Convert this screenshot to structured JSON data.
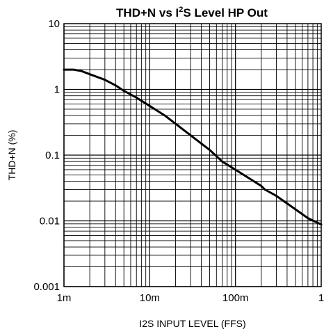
{
  "chart_data": {
    "type": "line",
    "title": {
      "prefix": "THD+N vs I",
      "sup": "2",
      "suffix": "S Level HP Out"
    },
    "xlabel": "I2S INPUT LEVEL (FFS)",
    "ylabel": "THD+N (%)",
    "x_scale": "log",
    "y_scale": "log",
    "xlim": [
      0.001,
      1
    ],
    "ylim": [
      0.001,
      10
    ],
    "grid": true,
    "x_ticks": [
      {
        "value": 0.001,
        "label": "1m"
      },
      {
        "value": 0.01,
        "label": "10m"
      },
      {
        "value": 0.1,
        "label": "100m"
      },
      {
        "value": 1,
        "label": "1"
      }
    ],
    "y_ticks": [
      {
        "value": 10,
        "label": "10"
      },
      {
        "value": 1,
        "label": "1"
      },
      {
        "value": 0.1,
        "label": "0.1"
      },
      {
        "value": 0.01,
        "label": "0.01"
      },
      {
        "value": 0.001,
        "label": "0.001"
      }
    ],
    "series": [
      {
        "color": "#000000",
        "x": [
          0.001,
          0.0013,
          0.0016,
          0.002,
          0.003,
          0.004,
          0.005,
          0.007,
          0.01,
          0.015,
          0.02,
          0.03,
          0.05,
          0.07,
          0.1,
          0.15,
          0.2,
          0.22,
          0.3,
          0.5,
          0.7,
          1
        ],
        "y": [
          2.0,
          2.0,
          1.9,
          1.7,
          1.4,
          1.15,
          0.95,
          0.75,
          0.56,
          0.4,
          0.3,
          0.2,
          0.12,
          0.08,
          0.06,
          0.043,
          0.034,
          0.03,
          0.024,
          0.015,
          0.011,
          0.0088
        ]
      }
    ]
  }
}
